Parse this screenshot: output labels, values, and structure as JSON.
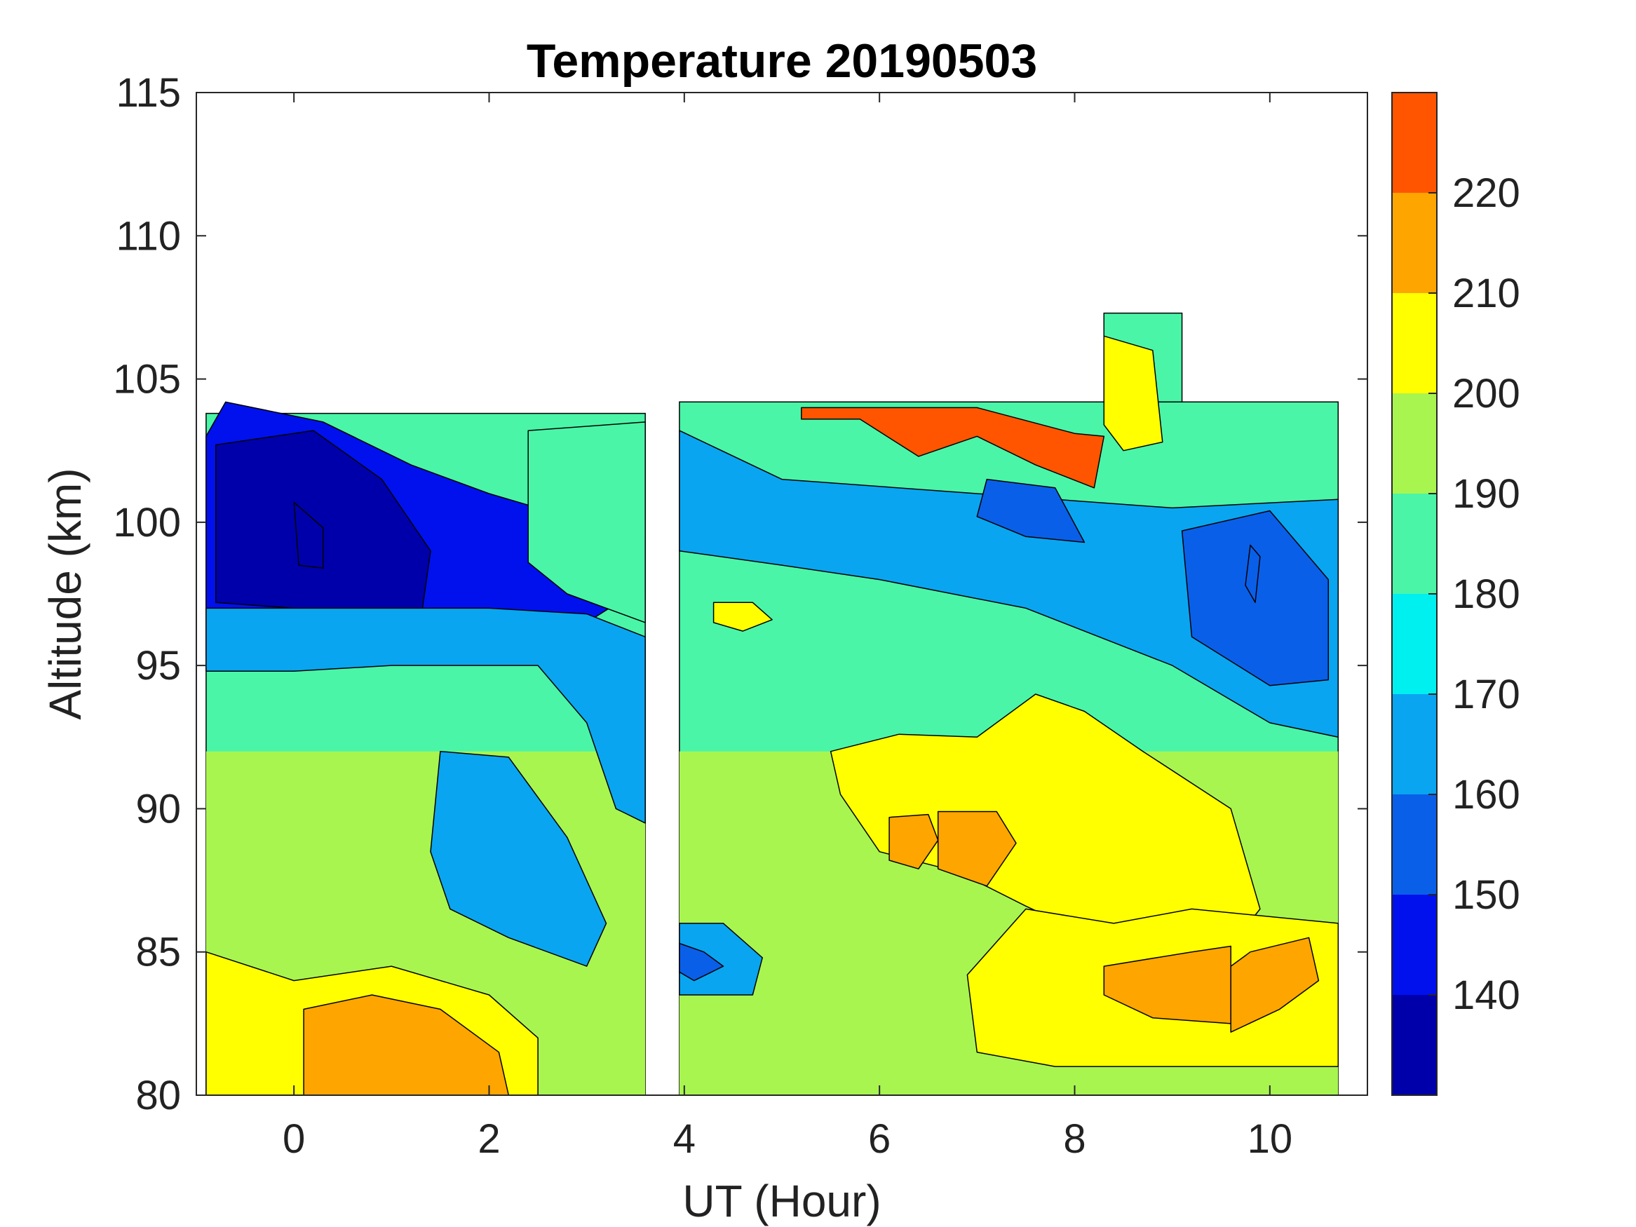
{
  "chart_data": {
    "type": "heatmap",
    "subtype": "filled-contour",
    "title": "Temperature 20190503",
    "xlabel": "UT (Hour)",
    "ylabel": "Altitude (km)",
    "xlim": [
      -1,
      11
    ],
    "ylim": [
      80,
      115
    ],
    "x_ticks": [
      "0",
      "2",
      "4",
      "6",
      "8",
      "10"
    ],
    "x_tick_values": [
      0,
      2,
      4,
      6,
      8,
      10
    ],
    "y_ticks": [
      "80",
      "85",
      "90",
      "95",
      "100",
      "105",
      "110",
      "115"
    ],
    "y_tick_values": [
      80,
      85,
      90,
      95,
      100,
      105,
      110,
      115
    ],
    "data_gap_x": [
      3.6,
      3.95
    ],
    "colorbar": {
      "range": [
        130,
        230
      ],
      "tick_labels": [
        "140",
        "150",
        "160",
        "170",
        "180",
        "190",
        "200",
        "210",
        "220"
      ],
      "tick_values": [
        140,
        150,
        160,
        170,
        180,
        190,
        200,
        210,
        220
      ],
      "level_colors": [
        {
          "min": 130,
          "max": 140,
          "color": "#0000AA"
        },
        {
          "min": 140,
          "max": 150,
          "color": "#0011EE"
        },
        {
          "min": 150,
          "max": 160,
          "color": "#0A5FE8"
        },
        {
          "min": 160,
          "max": 170,
          "color": "#0AA5F0"
        },
        {
          "min": 170,
          "max": 180,
          "color": "#00F0F0"
        },
        {
          "min": 180,
          "max": 190,
          "color": "#4AF5A8"
        },
        {
          "min": 190,
          "max": 200,
          "color": "#A8F550"
        },
        {
          "min": 200,
          "max": 210,
          "color": "#FFFF00"
        },
        {
          "min": 210,
          "max": 220,
          "color": "#FFA500"
        },
        {
          "min": 220,
          "max": 230,
          "color": "#FF5500"
        }
      ]
    },
    "regions": [
      {
        "t": 145,
        "pts": [
          [
            -0.9,
            103
          ],
          [
            -0.7,
            104.2
          ],
          [
            0.3,
            103.5
          ],
          [
            1.2,
            102
          ],
          [
            2,
            101
          ],
          [
            3,
            100
          ],
          [
            3.6,
            99.5
          ],
          [
            3.6,
            97.8
          ],
          [
            3,
            96.5
          ],
          [
            2,
            96
          ],
          [
            1,
            95.5
          ],
          [
            0,
            95.5
          ],
          [
            -0.9,
            95.3
          ]
        ]
      },
      {
        "t": 136,
        "pts": [
          [
            -0.8,
            102.7
          ],
          [
            0.2,
            103.2
          ],
          [
            0.9,
            101.5
          ],
          [
            1.4,
            99
          ],
          [
            1.3,
            96.6
          ],
          [
            0.4,
            96.9
          ],
          [
            -0.8,
            97.2
          ]
        ]
      },
      {
        "t": 130,
        "pts": [
          [
            0,
            100.7
          ],
          [
            0.3,
            99.8
          ],
          [
            0.3,
            98.4
          ],
          [
            0.05,
            98.5
          ]
        ]
      },
      {
        "t": 165,
        "pts": [
          [
            -0.9,
            94.8
          ],
          [
            0,
            94.8
          ],
          [
            1,
            95
          ],
          [
            2.5,
            95
          ],
          [
            3,
            93
          ],
          [
            3.3,
            90
          ],
          [
            3.6,
            89.5
          ],
          [
            3.6,
            96
          ],
          [
            3,
            96.8
          ],
          [
            2,
            97
          ],
          [
            -0.9,
            97
          ]
        ]
      },
      {
        "t": 168,
        "pts": [
          [
            1.5,
            92
          ],
          [
            2.2,
            91.8
          ],
          [
            2.8,
            89
          ],
          [
            3.2,
            86
          ],
          [
            3,
            84.5
          ],
          [
            2.2,
            85.5
          ],
          [
            1.6,
            86.5
          ],
          [
            1.4,
            88.5
          ]
        ]
      },
      {
        "t": 187,
        "pts": [
          [
            2.4,
            103.2
          ],
          [
            3.6,
            103.5
          ],
          [
            3.6,
            96.5
          ],
          [
            2.8,
            97.5
          ],
          [
            2.4,
            98.6
          ]
        ]
      },
      {
        "t": 203,
        "pts": [
          [
            -0.9,
            85
          ],
          [
            0,
            84
          ],
          [
            1,
            84.5
          ],
          [
            2,
            83.5
          ],
          [
            2.5,
            82
          ],
          [
            2.5,
            80
          ],
          [
            -0.9,
            80
          ]
        ]
      },
      {
        "t": 215,
        "pts": [
          [
            0.1,
            83
          ],
          [
            0.8,
            83.5
          ],
          [
            1.5,
            83
          ],
          [
            2.1,
            81.5
          ],
          [
            2.2,
            80
          ],
          [
            0.1,
            80
          ]
        ]
      },
      {
        "t": 165,
        "pts": [
          [
            3.95,
            103.2
          ],
          [
            5,
            101.5
          ],
          [
            7,
            101
          ],
          [
            9,
            100.5
          ],
          [
            10.7,
            100.8
          ],
          [
            10.7,
            92.5
          ],
          [
            10,
            93
          ],
          [
            9,
            95
          ],
          [
            7.5,
            97
          ],
          [
            6,
            98
          ],
          [
            5,
            98.5
          ],
          [
            3.95,
            99
          ]
        ]
      },
      {
        "t": 155,
        "pts": [
          [
            9.1,
            99.7
          ],
          [
            10,
            100.4
          ],
          [
            10.6,
            98
          ],
          [
            10.6,
            94.5
          ],
          [
            10,
            94.3
          ],
          [
            9.2,
            96
          ]
        ]
      },
      {
        "t": 155,
        "pts": [
          [
            7.1,
            101.5
          ],
          [
            7.8,
            101.2
          ],
          [
            8.1,
            99.3
          ],
          [
            7.5,
            99.5
          ],
          [
            7,
            100.2
          ]
        ]
      },
      {
        "t": 150,
        "pts": [
          [
            9.8,
            99.2
          ],
          [
            9.9,
            98.8
          ],
          [
            9.85,
            97.2
          ],
          [
            9.75,
            97.8
          ]
        ]
      },
      {
        "t": 204,
        "pts": [
          [
            5.5,
            92
          ],
          [
            6.2,
            92.6
          ],
          [
            7,
            92.5
          ],
          [
            7.6,
            94
          ],
          [
            8.1,
            93.4
          ],
          [
            8.7,
            92
          ],
          [
            9.6,
            90
          ],
          [
            9.9,
            86.5
          ],
          [
            9.6,
            85.2
          ],
          [
            8.5,
            85
          ],
          [
            7.5,
            86.6
          ],
          [
            6.8,
            87.8
          ],
          [
            6,
            88.5
          ],
          [
            5.6,
            90.5
          ]
        ]
      },
      {
        "t": 213,
        "pts": [
          [
            6.1,
            89.7
          ],
          [
            6.5,
            89.8
          ],
          [
            6.6,
            88.9
          ],
          [
            6.4,
            87.9
          ],
          [
            6.1,
            88.2
          ]
        ]
      },
      {
        "t": 213,
        "pts": [
          [
            6.6,
            89.9
          ],
          [
            7.2,
            89.9
          ],
          [
            7.4,
            88.8
          ],
          [
            7.1,
            87.3
          ],
          [
            6.6,
            87.9
          ]
        ]
      },
      {
        "t": 204,
        "pts": [
          [
            6.9,
            84.2
          ],
          [
            7.5,
            86.5
          ],
          [
            8.4,
            86
          ],
          [
            9.2,
            86.5
          ],
          [
            10.7,
            86
          ],
          [
            10.7,
            81
          ],
          [
            9,
            81
          ],
          [
            7.8,
            81
          ],
          [
            7,
            81.5
          ]
        ]
      },
      {
        "t": 213,
        "pts": [
          [
            8.3,
            84.5
          ],
          [
            9.2,
            85
          ],
          [
            9.6,
            85.2
          ],
          [
            9.6,
            82.5
          ],
          [
            8.8,
            82.7
          ],
          [
            8.3,
            83.5
          ]
        ]
      },
      {
        "t": 213,
        "pts": [
          [
            9.8,
            85
          ],
          [
            10.4,
            85.5
          ],
          [
            10.5,
            84
          ],
          [
            10.1,
            83
          ],
          [
            9.6,
            82.2
          ],
          [
            9.6,
            84.5
          ]
        ]
      },
      {
        "t": 203,
        "pts": [
          [
            4.3,
            97.2
          ],
          [
            4.7,
            97.2
          ],
          [
            4.9,
            96.6
          ],
          [
            4.6,
            96.2
          ],
          [
            4.3,
            96.5
          ]
        ]
      },
      {
        "t": 223,
        "pts": [
          [
            5.2,
            104
          ],
          [
            6,
            104
          ],
          [
            7,
            104
          ],
          [
            8,
            103.1
          ],
          [
            8.3,
            103
          ],
          [
            8.2,
            101.2
          ],
          [
            7.6,
            102
          ],
          [
            7,
            103
          ],
          [
            6.4,
            102.3
          ],
          [
            5.8,
            103.6
          ],
          [
            5.2,
            103.6
          ]
        ]
      },
      {
        "t": 203,
        "pts": [
          [
            8.3,
            106.5
          ],
          [
            8.8,
            106
          ],
          [
            8.9,
            102.8
          ],
          [
            8.5,
            102.5
          ],
          [
            8.3,
            103.4
          ]
        ]
      },
      {
        "t": 168,
        "pts": [
          [
            3.95,
            86
          ],
          [
            4.4,
            86
          ],
          [
            4.8,
            84.8
          ],
          [
            4.7,
            83.5
          ],
          [
            3.95,
            83.5
          ]
        ]
      },
      {
        "t": 158,
        "pts": [
          [
            3.95,
            85.3
          ],
          [
            4.2,
            85
          ],
          [
            4.4,
            84.5
          ],
          [
            4.1,
            84
          ],
          [
            3.95,
            84.3
          ]
        ]
      }
    ],
    "coverage": {
      "segment_a": {
        "x": [
          -0.9,
          3.6
        ],
        "top_km": 103.8,
        "bottom_km": 80
      },
      "segment_b": {
        "x": [
          3.95,
          10.7
        ],
        "top_km": 104.2,
        "bottom_km": 80
      },
      "high_extension": {
        "x": [
          8.3,
          9.1
        ],
        "top_km": 107.3
      }
    }
  }
}
